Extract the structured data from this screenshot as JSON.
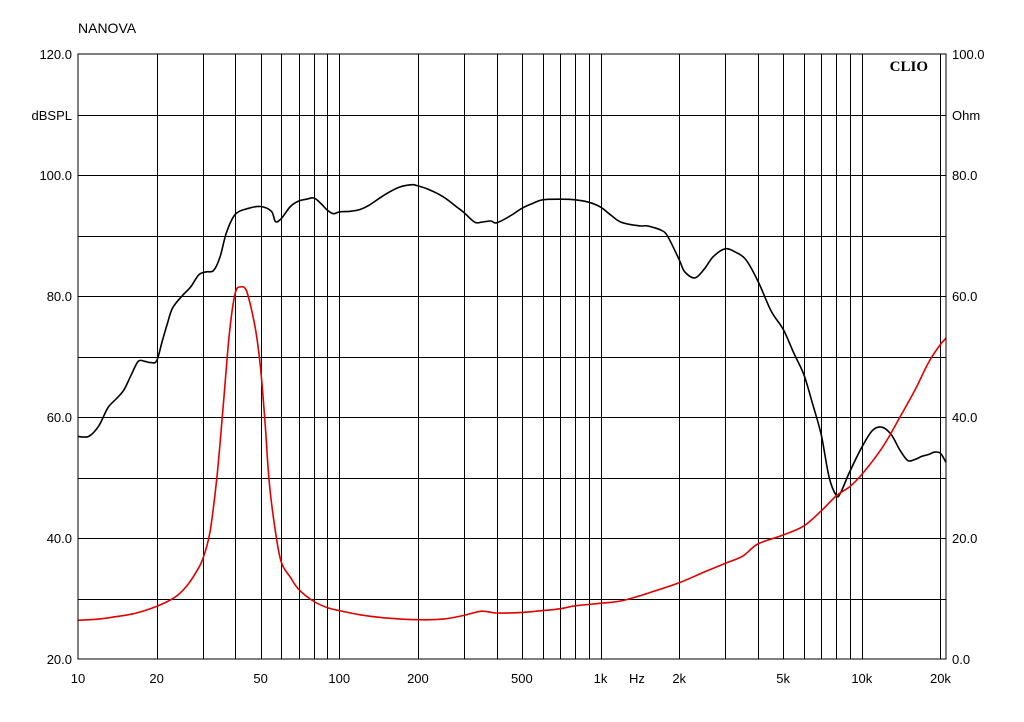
{
  "chart_data": {
    "type": "line",
    "title": "NANOVA",
    "brand": "CLIO",
    "x_unit_label": "Hz",
    "y_left_label": "dBSPL",
    "y_right_label": "Ohm",
    "x_scale": "log",
    "xlim": [
      10,
      21000
    ],
    "ylim_left": [
      20,
      120
    ],
    "ylim_right": [
      0,
      100
    ],
    "grid": true,
    "x_tick_labels": [
      {
        "value": 10,
        "label": "10"
      },
      {
        "value": 20,
        "label": "20"
      },
      {
        "value": 50,
        "label": "50"
      },
      {
        "value": 100,
        "label": "100"
      },
      {
        "value": 200,
        "label": "200"
      },
      {
        "value": 500,
        "label": "500"
      },
      {
        "value": 1000,
        "label": "1k"
      },
      {
        "value": 2000,
        "label": "2k"
      },
      {
        "value": 5000,
        "label": "5k"
      },
      {
        "value": 10000,
        "label": "10k"
      },
      {
        "value": 20000,
        "label": "20k"
      }
    ],
    "y_left_tick_labels": [
      {
        "value": 20,
        "label": "20.0"
      },
      {
        "value": 40,
        "label": "40.0"
      },
      {
        "value": 60,
        "label": "60.0"
      },
      {
        "value": 80,
        "label": "80.0"
      },
      {
        "value": 100,
        "label": "100.0"
      },
      {
        "value": 120,
        "label": "120.0"
      }
    ],
    "y_right_tick_labels": [
      {
        "value": 0,
        "label": "0.0"
      },
      {
        "value": 20,
        "label": "20.0"
      },
      {
        "value": 40,
        "label": "40.0"
      },
      {
        "value": 60,
        "label": "60.0"
      },
      {
        "value": 80,
        "label": "80.0"
      },
      {
        "value": 100,
        "label": "100.0"
      }
    ],
    "series": [
      {
        "axis": "left",
        "color": "#000000",
        "x": [
          10,
          11,
          12,
          13,
          14,
          15,
          16,
          17,
          18,
          19,
          20,
          21,
          22,
          23,
          25,
          27,
          29,
          31,
          33,
          35,
          37,
          40,
          45,
          50,
          55,
          57,
          60,
          65,
          70,
          75,
          80,
          85,
          90,
          95,
          100,
          110,
          120,
          130,
          150,
          170,
          190,
          200,
          220,
          250,
          280,
          300,
          330,
          350,
          380,
          400,
          450,
          500,
          550,
          600,
          700,
          800,
          900,
          1000,
          1100,
          1200,
          1400,
          1500,
          1600,
          1700,
          1800,
          2000,
          2100,
          2300,
          2500,
          2700,
          3000,
          3300,
          3600,
          4000,
          4500,
          5000,
          5500,
          6000,
          6500,
          7000,
          7500,
          8000,
          8300,
          9000,
          10000,
          11000,
          12000,
          13000,
          14000,
          15000,
          16000,
          17000,
          18000,
          19000,
          20000,
          21000
        ],
        "y": [
          56.8,
          56.8,
          58.5,
          61.5,
          63.0,
          64.5,
          67.0,
          69.2,
          69.2,
          69.0,
          69.3,
          72.5,
          75.5,
          78.0,
          80.0,
          81.5,
          83.5,
          84.0,
          84.2,
          86.5,
          90.5,
          93.5,
          94.5,
          94.8,
          94.0,
          92.3,
          92.8,
          94.8,
          95.7,
          96.0,
          96.2,
          95.3,
          94.2,
          93.6,
          93.9,
          94.0,
          94.3,
          95.0,
          96.8,
          98.0,
          98.4,
          98.2,
          97.6,
          96.4,
          94.8,
          93.8,
          92.2,
          92.2,
          92.4,
          92.1,
          93.2,
          94.5,
          95.3,
          95.9,
          96.0,
          95.9,
          95.5,
          94.7,
          93.3,
          92.2,
          91.6,
          91.6,
          91.3,
          90.9,
          90.0,
          86.0,
          84.0,
          83.0,
          84.5,
          86.5,
          87.8,
          87.2,
          86.0,
          82.5,
          77.5,
          74.5,
          70.5,
          67.0,
          62.0,
          57.0,
          50.0,
          47.0,
          47.5,
          51.0,
          55.0,
          57.8,
          58.3,
          57.0,
          54.5,
          52.8,
          53.0,
          53.5,
          53.8,
          54.2,
          54.0,
          52.5
        ]
      },
      {
        "axis": "right",
        "color": "#e00000",
        "x": [
          10,
          12,
          14,
          16,
          18,
          20,
          22,
          24,
          26,
          28,
          30,
          32,
          34,
          36,
          38,
          40,
          42,
          44,
          46,
          48,
          50,
          52,
          54,
          57,
          60,
          65,
          70,
          80,
          90,
          100,
          120,
          150,
          200,
          250,
          300,
          350,
          400,
          500,
          600,
          700,
          800,
          1000,
          1200,
          1500,
          2000,
          2500,
          3000,
          3500,
          4000,
          5000,
          6000,
          7000,
          8000,
          9000,
          10000,
          12000,
          14000,
          16000,
          18000,
          20000,
          21000
        ],
        "y": [
          6.4,
          6.6,
          7.0,
          7.4,
          8.0,
          8.7,
          9.5,
          10.5,
          12.0,
          14.0,
          16.5,
          21.0,
          30.0,
          42.0,
          54.0,
          60.5,
          61.5,
          61.0,
          58.0,
          54.0,
          48.0,
          39.0,
          29.0,
          21.0,
          16.0,
          13.5,
          11.5,
          9.5,
          8.5,
          8.0,
          7.3,
          6.8,
          6.5,
          6.6,
          7.2,
          7.9,
          7.6,
          7.7,
          8.0,
          8.3,
          8.8,
          9.2,
          9.6,
          10.8,
          12.6,
          14.4,
          15.8,
          17.0,
          19.0,
          20.5,
          22.0,
          24.5,
          27.0,
          28.5,
          30.5,
          35.0,
          40.0,
          44.5,
          49.0,
          52.0,
          53.0
        ]
      }
    ]
  }
}
